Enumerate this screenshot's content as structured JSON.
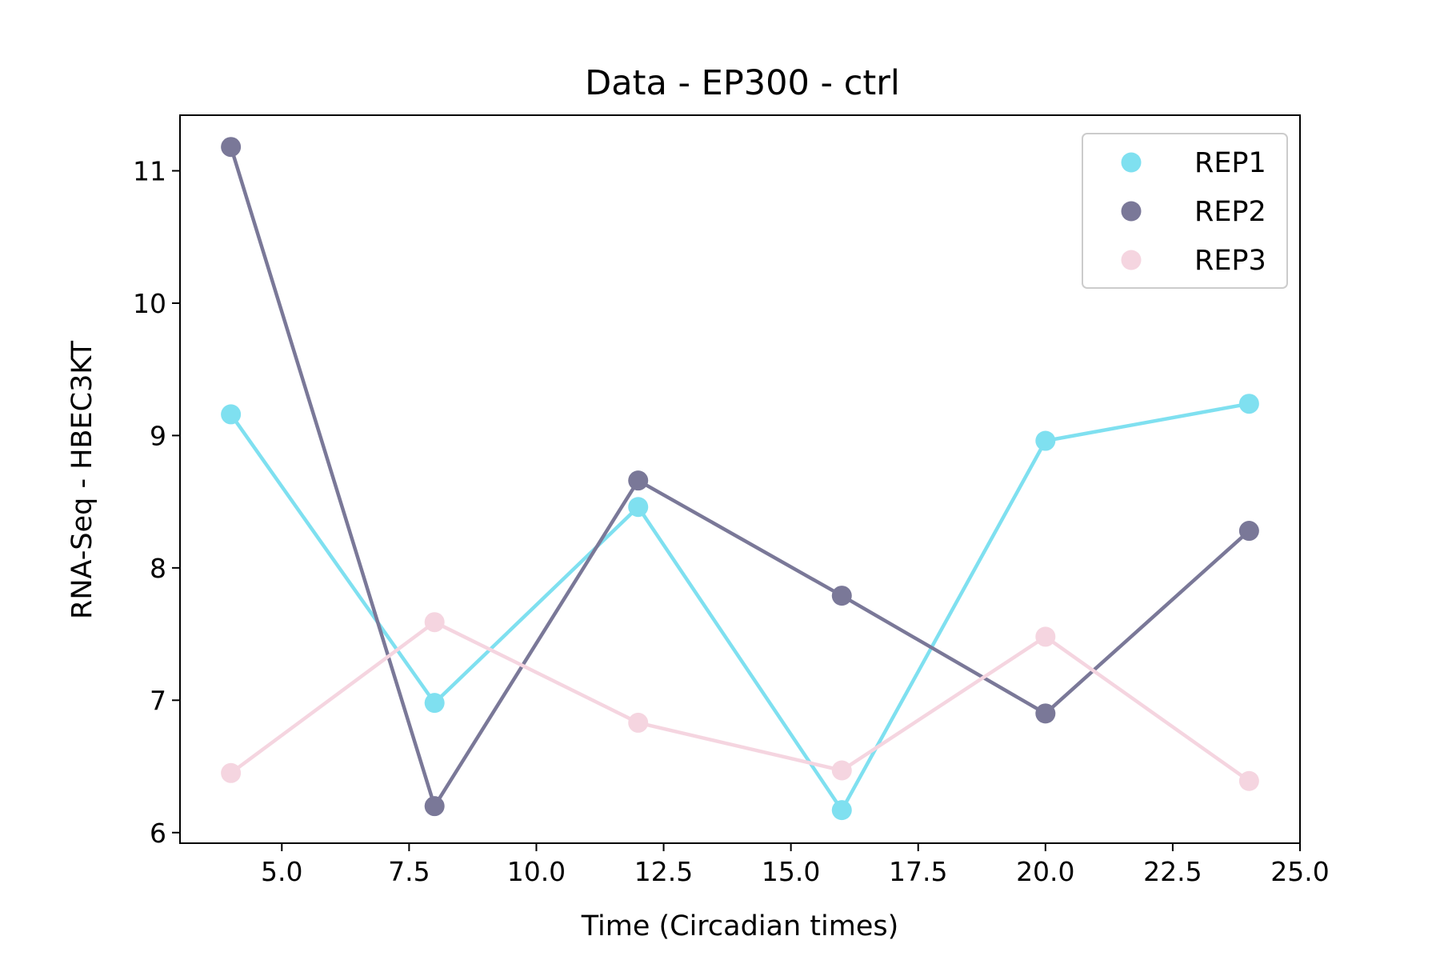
{
  "chart_data": {
    "type": "line",
    "title": "Data - EP300 - ctrl",
    "xlabel": "Time (Circadian times)",
    "ylabel": "RNA-Seq - HBEC3KT",
    "xlim": [
      3.0,
      25.0
    ],
    "ylim": [
      5.92,
      11.42
    ],
    "xticks": [
      5.0,
      7.5,
      10.0,
      12.5,
      15.0,
      17.5,
      20.0,
      22.5,
      25.0
    ],
    "xtick_labels": [
      "5.0",
      "7.5",
      "10.0",
      "12.5",
      "15.0",
      "17.5",
      "20.0",
      "22.5",
      "25.0"
    ],
    "yticks": [
      6,
      7,
      8,
      9,
      10,
      11
    ],
    "ytick_labels": [
      "6",
      "7",
      "8",
      "9",
      "10",
      "11"
    ],
    "grid": false,
    "legend_position": "top-right",
    "x": [
      4,
      8,
      12,
      16,
      20,
      24
    ],
    "series": [
      {
        "name": "REP1",
        "color": "#7fe0f0",
        "values": [
          9.16,
          6.98,
          8.46,
          6.17,
          8.96,
          9.24
        ]
      },
      {
        "name": "REP2",
        "color": "#7a7898",
        "values": [
          11.18,
          6.2,
          8.66,
          7.79,
          6.9,
          8.28
        ]
      },
      {
        "name": "REP3",
        "color": "#f5d5e0",
        "values": [
          6.45,
          7.59,
          6.83,
          6.47,
          7.48,
          6.39
        ]
      }
    ]
  }
}
